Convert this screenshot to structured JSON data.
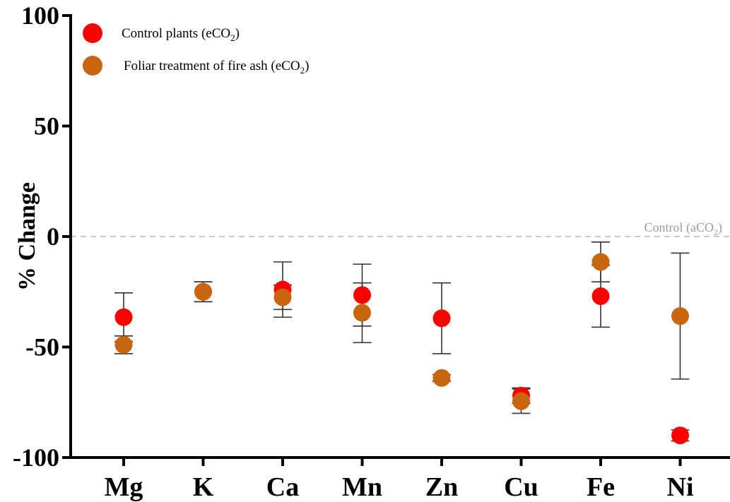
{
  "chart_data": {
    "type": "scatter",
    "categories": [
      "Mg",
      "K",
      "Ca",
      "Mn",
      "Zn",
      "Cu",
      "Fe",
      "Ni"
    ],
    "ylabel": "% Change",
    "ylim": [
      -100,
      100
    ],
    "yticks": [
      100,
      50,
      0,
      -50,
      -100
    ],
    "reference_line": {
      "y": 0,
      "label_main": "Control (aCO",
      "label_sub": "2",
      "label_end": ")",
      "color": "#c8c8c8"
    },
    "legend_position": "top-left",
    "series": [
      {
        "name_main": "Control plants (eCO",
        "name_sub": "2",
        "name_end": ")",
        "color": "#ff0000",
        "values": [
          -36.5,
          -25,
          -24,
          -26.5,
          -37,
          -72,
          -27,
          -90
        ],
        "errors": [
          11,
          4.5,
          12.5,
          14,
          16,
          3.5,
          14,
          2.5
        ]
      },
      {
        "name_main": "Foliar treatment of fire ash (eCO",
        "name_sub": "2",
        "name_end": ")",
        "color": "#c8650e",
        "values": [
          -49,
          -25,
          -27.5,
          -34.5,
          -64,
          -74.5,
          -11.5,
          -36
        ],
        "errors": [
          4,
          4.5,
          5.5,
          13.5,
          1.5,
          5.5,
          9,
          28.5
        ]
      }
    ]
  }
}
